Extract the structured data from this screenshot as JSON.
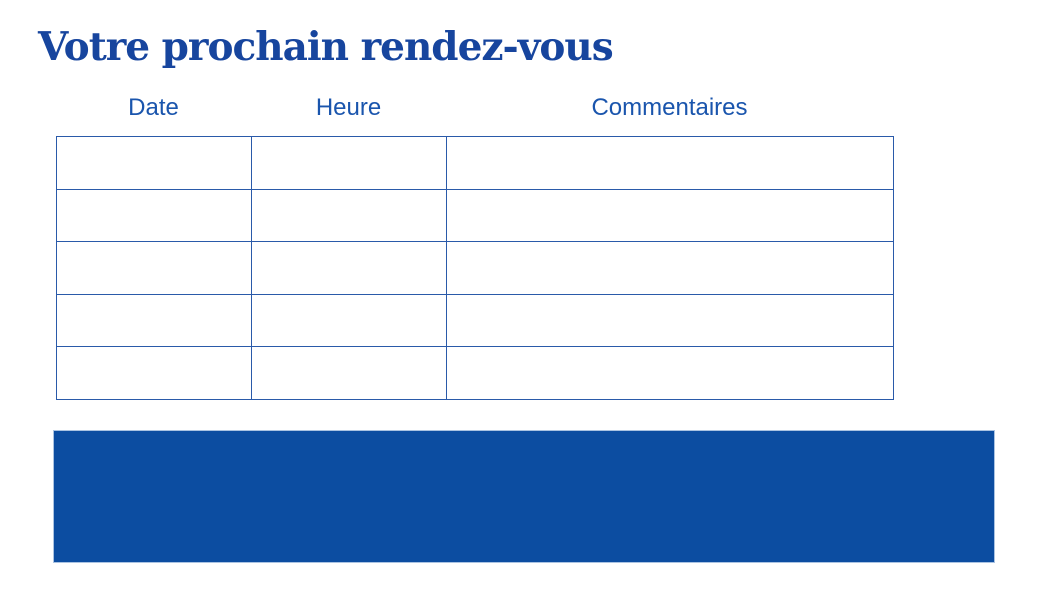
{
  "page": {
    "title": "Votre prochain rendez-vous"
  },
  "table": {
    "headers": [
      "Date",
      "Heure",
      "Commentaires"
    ],
    "rows": [
      [
        "",
        "",
        ""
      ],
      [
        "",
        "",
        ""
      ],
      [
        "",
        "",
        ""
      ],
      [
        "",
        "",
        ""
      ],
      [
        "",
        "",
        ""
      ]
    ]
  },
  "colors": {
    "title_text": "#17459E",
    "header_text": "#1A55AD",
    "table_border": "#2A5AA9",
    "banner_fill": "#0C4DA1",
    "banner_outline": "#AAC3E2"
  }
}
